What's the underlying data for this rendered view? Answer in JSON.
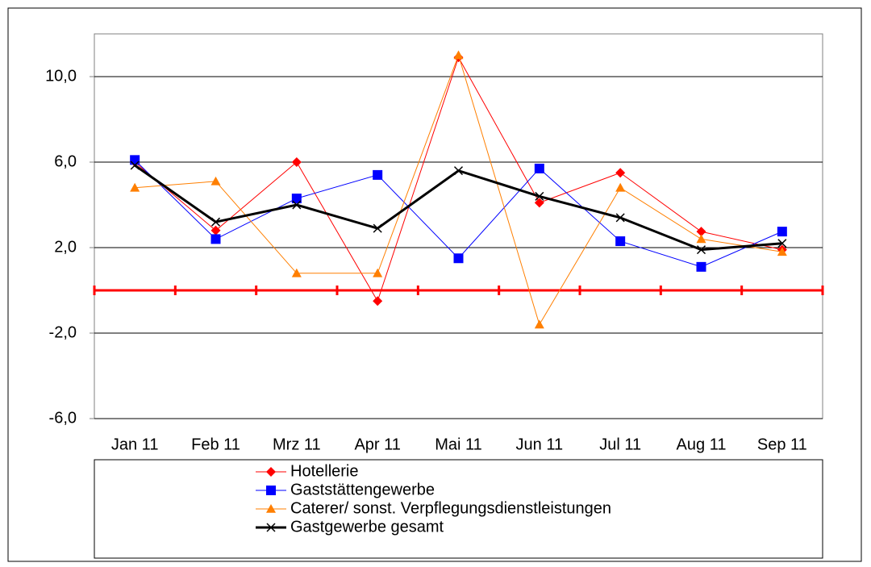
{
  "chart_data": {
    "type": "line",
    "categories": [
      "Jan 11",
      "Feb 11",
      "Mrz 11",
      "Apr 11",
      "Mai 11",
      "Jun 11",
      "Jul 11",
      "Aug 11",
      "Sep 11"
    ],
    "series": [
      {
        "name": "Hotellerie",
        "color": "#ff0000",
        "marker": "diamond",
        "line_width": 1,
        "values": [
          6.0,
          2.8,
          6.0,
          -0.5,
          10.9,
          4.1,
          5.5,
          2.75,
          1.9
        ]
      },
      {
        "name": "Gaststättengewerbe",
        "color": "#0000ff",
        "marker": "square",
        "line_width": 1,
        "values": [
          6.1,
          2.4,
          4.3,
          5.4,
          1.5,
          5.7,
          2.3,
          1.1,
          2.75
        ]
      },
      {
        "name": "Caterer/ sonst. Verpflegungsdienstleistungen",
        "color": "#ff7f00",
        "marker": "triangle",
        "line_width": 1,
        "values": [
          4.8,
          5.1,
          0.8,
          0.8,
          11.0,
          -1.6,
          4.8,
          2.4,
          1.8
        ]
      },
      {
        "name": "Gastgewerbe gesamt",
        "color": "#000000",
        "marker": "x",
        "line_width": 3,
        "values": [
          5.85,
          3.2,
          4.0,
          2.9,
          5.6,
          4.4,
          3.4,
          1.9,
          2.2
        ]
      }
    ],
    "ylim": [
      -6,
      12
    ],
    "yticks": [
      {
        "value": -6,
        "label": "-6,0"
      },
      {
        "value": -2,
        "label": "-2,0"
      },
      {
        "value": 2,
        "label": "2,0"
      },
      {
        "value": 6,
        "label": "6,0"
      },
      {
        "value": 10,
        "label": "10,0"
      }
    ],
    "grid": true,
    "axis_color": "#ff0000",
    "legend": "bottom"
  }
}
